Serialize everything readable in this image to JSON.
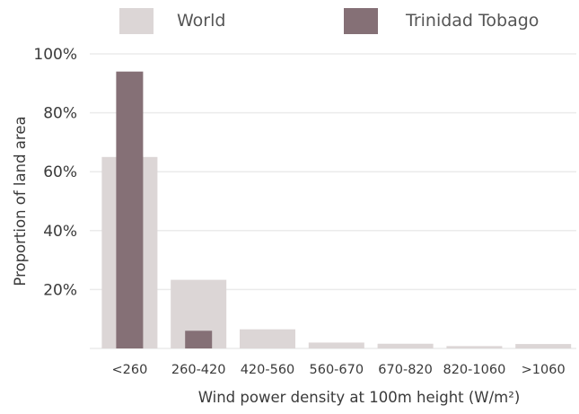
{
  "chart_data": {
    "type": "bar",
    "title": "",
    "xlabel": "Wind power density at 100m height (W/m²)",
    "ylabel": "Proportion of land area",
    "ylim": [
      0,
      100
    ],
    "yticks": [
      "",
      "20%",
      "40%",
      "60%",
      "80%",
      "100%"
    ],
    "grid": true,
    "legend_position": "top",
    "categories": [
      "<260",
      "260-420",
      "420-560",
      "560-670",
      "670-820",
      "820-1060",
      ">1060"
    ],
    "series": [
      {
        "name": "World",
        "color": "#dcd6d6",
        "values": [
          65,
          23.3,
          6.5,
          2,
          1.6,
          0.8,
          1.5
        ]
      },
      {
        "name": "Trinidad Tobago",
        "color": "#857076",
        "values": [
          94,
          6,
          0,
          0,
          0,
          0,
          0
        ]
      }
    ]
  }
}
